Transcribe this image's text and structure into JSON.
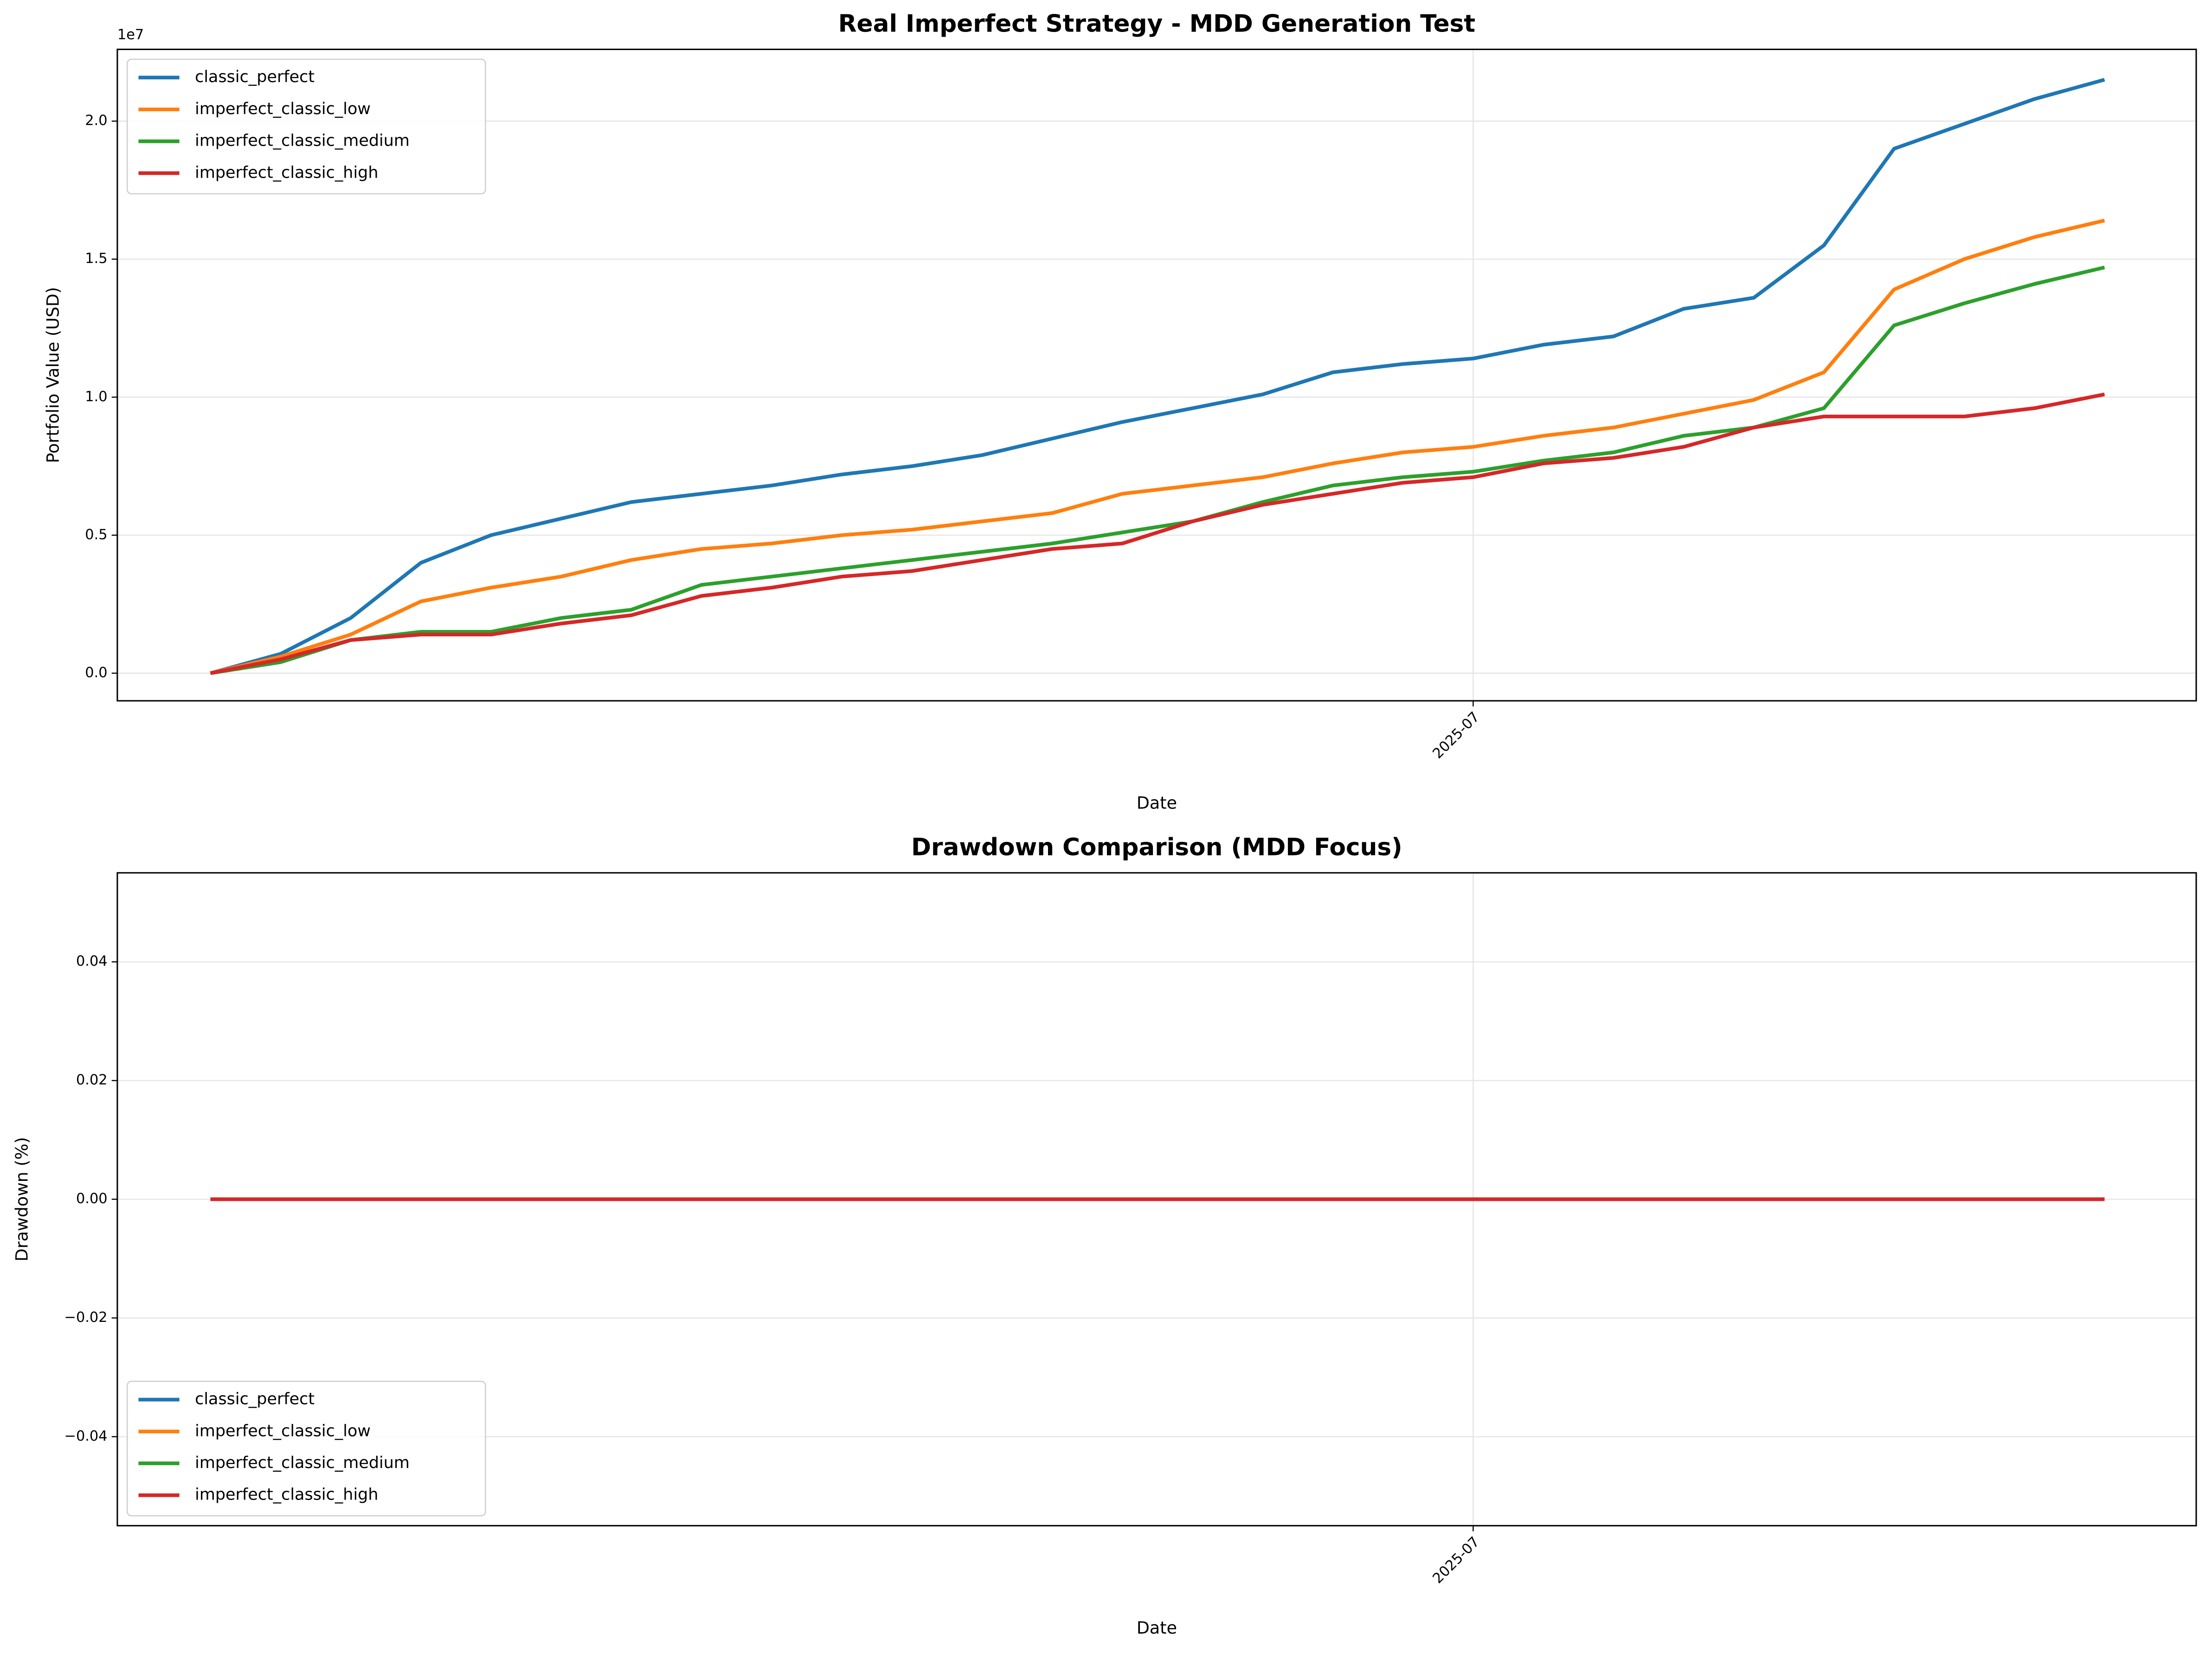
{
  "chart_data": [
    {
      "type": "line",
      "title": "Real Imperfect Strategy - MDD Generation Test",
      "x_label": "Date",
      "y_label": "Portfolio Value (USD)",
      "y_offset_label": "1e7",
      "categories": [
        null,
        null,
        null,
        null,
        null,
        null,
        null,
        null,
        null,
        null,
        null,
        null,
        null,
        null,
        null,
        null,
        null,
        null,
        "2025-07",
        null,
        null,
        null,
        null,
        null,
        null,
        null,
        null,
        null
      ],
      "ylim": [
        -1000000,
        22600000
      ],
      "yticks": [
        {
          "value": 0,
          "label": "0.0"
        },
        {
          "value": 5000000,
          "label": "0.5"
        },
        {
          "value": 10000000,
          "label": "1.0"
        },
        {
          "value": 15000000,
          "label": "1.5"
        },
        {
          "value": 20000000,
          "label": "2.0"
        }
      ],
      "grid": true,
      "legend": "upper left",
      "series": [
        {
          "name": "classic_perfect",
          "color": "#1f77b4",
          "values": [
            0,
            700000,
            2000000,
            4000000,
            5000000,
            5600000,
            6200000,
            6500000,
            6800000,
            7200000,
            7500000,
            7900000,
            8500000,
            9100000,
            9600000,
            10100000,
            10900000,
            11200000,
            11400000,
            11900000,
            12200000,
            13200000,
            13600000,
            15500000,
            19000000,
            19900000,
            20800000,
            21500000
          ]
        },
        {
          "name": "imperfect_classic_low",
          "color": "#ff7f0e",
          "values": [
            0,
            600000,
            1400000,
            2600000,
            3100000,
            3500000,
            4100000,
            4500000,
            4700000,
            5000000,
            5200000,
            5500000,
            5800000,
            6500000,
            6800000,
            7100000,
            7600000,
            8000000,
            8200000,
            8600000,
            8900000,
            9400000,
            9900000,
            10900000,
            13900000,
            15000000,
            15800000,
            16400000
          ]
        },
        {
          "name": "imperfect_classic_medium",
          "color": "#2ca02c",
          "values": [
            0,
            400000,
            1200000,
            1500000,
            1500000,
            2000000,
            2300000,
            3200000,
            3500000,
            3800000,
            4100000,
            4400000,
            4700000,
            5100000,
            5500000,
            6200000,
            6800000,
            7100000,
            7300000,
            7700000,
            8000000,
            8600000,
            8900000,
            9600000,
            12600000,
            13400000,
            14100000,
            14700000
          ]
        },
        {
          "name": "imperfect_classic_high",
          "color": "#d62728",
          "values": [
            0,
            500000,
            1200000,
            1400000,
            1400000,
            1800000,
            2100000,
            2800000,
            3100000,
            3500000,
            3700000,
            4100000,
            4500000,
            4700000,
            5500000,
            6100000,
            6500000,
            6900000,
            7100000,
            7600000,
            7800000,
            8200000,
            8900000,
            9300000,
            9300000,
            9300000,
            9600000,
            10100000
          ]
        }
      ]
    },
    {
      "type": "line",
      "title": "Drawdown Comparison (MDD Focus)",
      "x_label": "Date",
      "y_label": "Drawdown (%)",
      "categories": [
        null,
        null,
        null,
        null,
        null,
        null,
        null,
        null,
        null,
        null,
        null,
        null,
        null,
        null,
        null,
        null,
        null,
        null,
        "2025-07",
        null,
        null,
        null,
        null,
        null,
        null,
        null,
        null,
        null
      ],
      "ylim": [
        -0.055,
        0.055
      ],
      "yticks": [
        {
          "value": -0.04,
          "label": "−0.04"
        },
        {
          "value": -0.02,
          "label": "−0.02"
        },
        {
          "value": 0,
          "label": "0.00"
        },
        0.02,
        0.04
      ],
      "grid": true,
      "legend": "lower left",
      "series": [
        {
          "name": "classic_perfect",
          "color": "#1f77b4",
          "values": [
            0,
            0,
            0,
            0,
            0,
            0,
            0,
            0,
            0,
            0,
            0,
            0,
            0,
            0,
            0,
            0,
            0,
            0,
            0,
            0,
            0,
            0,
            0,
            0,
            0,
            0,
            0,
            0
          ]
        },
        {
          "name": "imperfect_classic_low",
          "color": "#ff7f0e",
          "values": [
            0,
            0,
            0,
            0,
            0,
            0,
            0,
            0,
            0,
            0,
            0,
            0,
            0,
            0,
            0,
            0,
            0,
            0,
            0,
            0,
            0,
            0,
            0,
            0,
            0,
            0,
            0,
            0
          ]
        },
        {
          "name": "imperfect_classic_medium",
          "color": "#2ca02c",
          "values": [
            0,
            0,
            0,
            0,
            0,
            0,
            0,
            0,
            0,
            0,
            0,
            0,
            0,
            0,
            0,
            0,
            0,
            0,
            0,
            0,
            0,
            0,
            0,
            0,
            0,
            0,
            0,
            0
          ]
        },
        {
          "name": "imperfect_classic_high",
          "color": "#d62728",
          "values": [
            0,
            0,
            0,
            0,
            0,
            0,
            0,
            0,
            0,
            0,
            0,
            0,
            0,
            0,
            0,
            0,
            0,
            0,
            0,
            0,
            0,
            0,
            0,
            0,
            0,
            0,
            0,
            0
          ]
        }
      ]
    }
  ]
}
